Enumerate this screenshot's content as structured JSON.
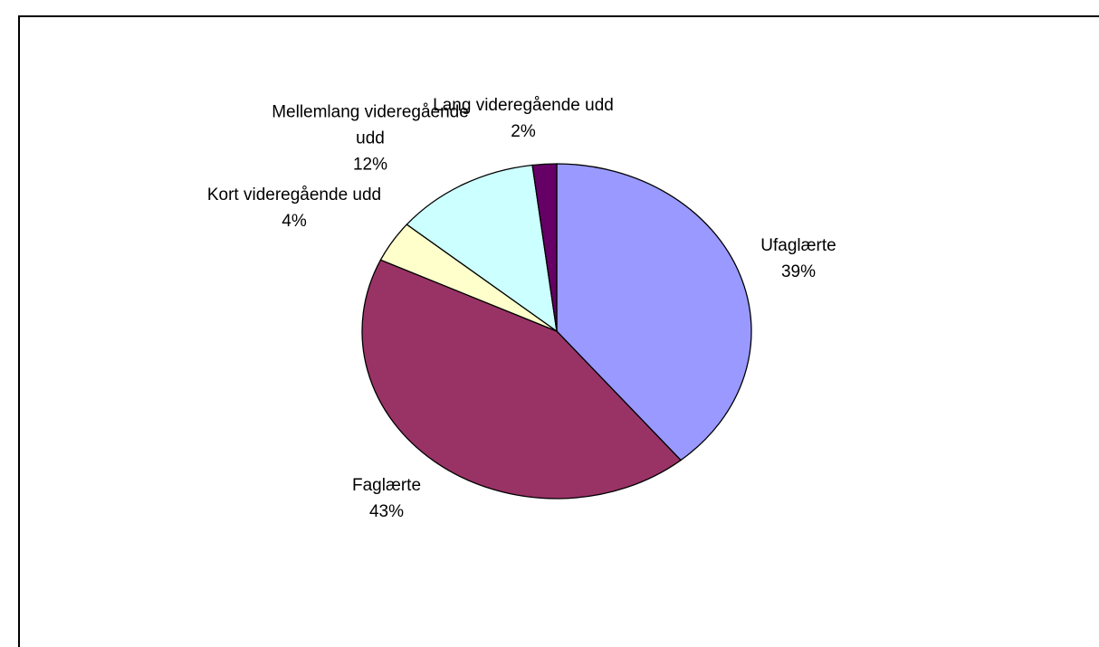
{
  "chart_data": {
    "type": "pie",
    "categories": [
      "Ufaglærte",
      "Faglærte",
      "Kort videregående udd",
      "Mellemlang videregående udd",
      "Lang videregående udd"
    ],
    "values": [
      39,
      43,
      4,
      12,
      2
    ],
    "value_labels": [
      "39%",
      "43%",
      "4%",
      "12%",
      "2%"
    ],
    "colors": [
      "#9999ff",
      "#993366",
      "#ffffcc",
      "#ccffff",
      "#660066"
    ]
  }
}
